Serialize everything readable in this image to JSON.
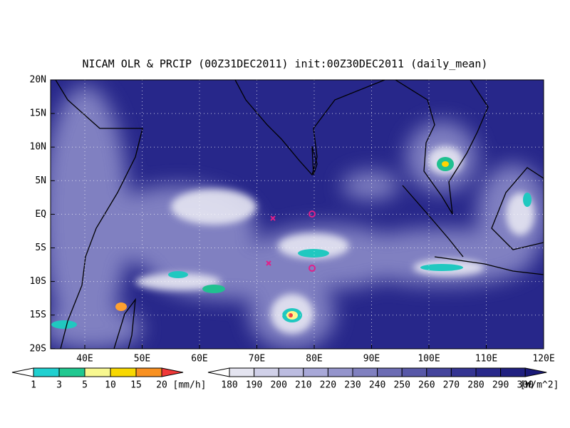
{
  "map": {
    "title": "NICAM OLR & PRCIP (00Z31DEC2011) init:00Z30DEC2011 (daily_mean)",
    "x_ticks": [
      "40E",
      "50E",
      "60E",
      "70E",
      "80E",
      "90E",
      "100E",
      "110E",
      "120E"
    ],
    "y_ticks": [
      "20N",
      "15N",
      "10N",
      "5N",
      "EQ",
      "5S",
      "10S",
      "15S",
      "20S"
    ],
    "precip_colorbar": {
      "labels": [
        "1",
        "3",
        "5",
        "10",
        "15",
        "20"
      ],
      "unit": "[mm/h]"
    },
    "olr_colorbar": {
      "labels": [
        "180",
        "190",
        "200",
        "210",
        "220",
        "230",
        "240",
        "250",
        "260",
        "270",
        "280",
        "290",
        "300"
      ],
      "unit": "[W/m^2]"
    }
  }
}
